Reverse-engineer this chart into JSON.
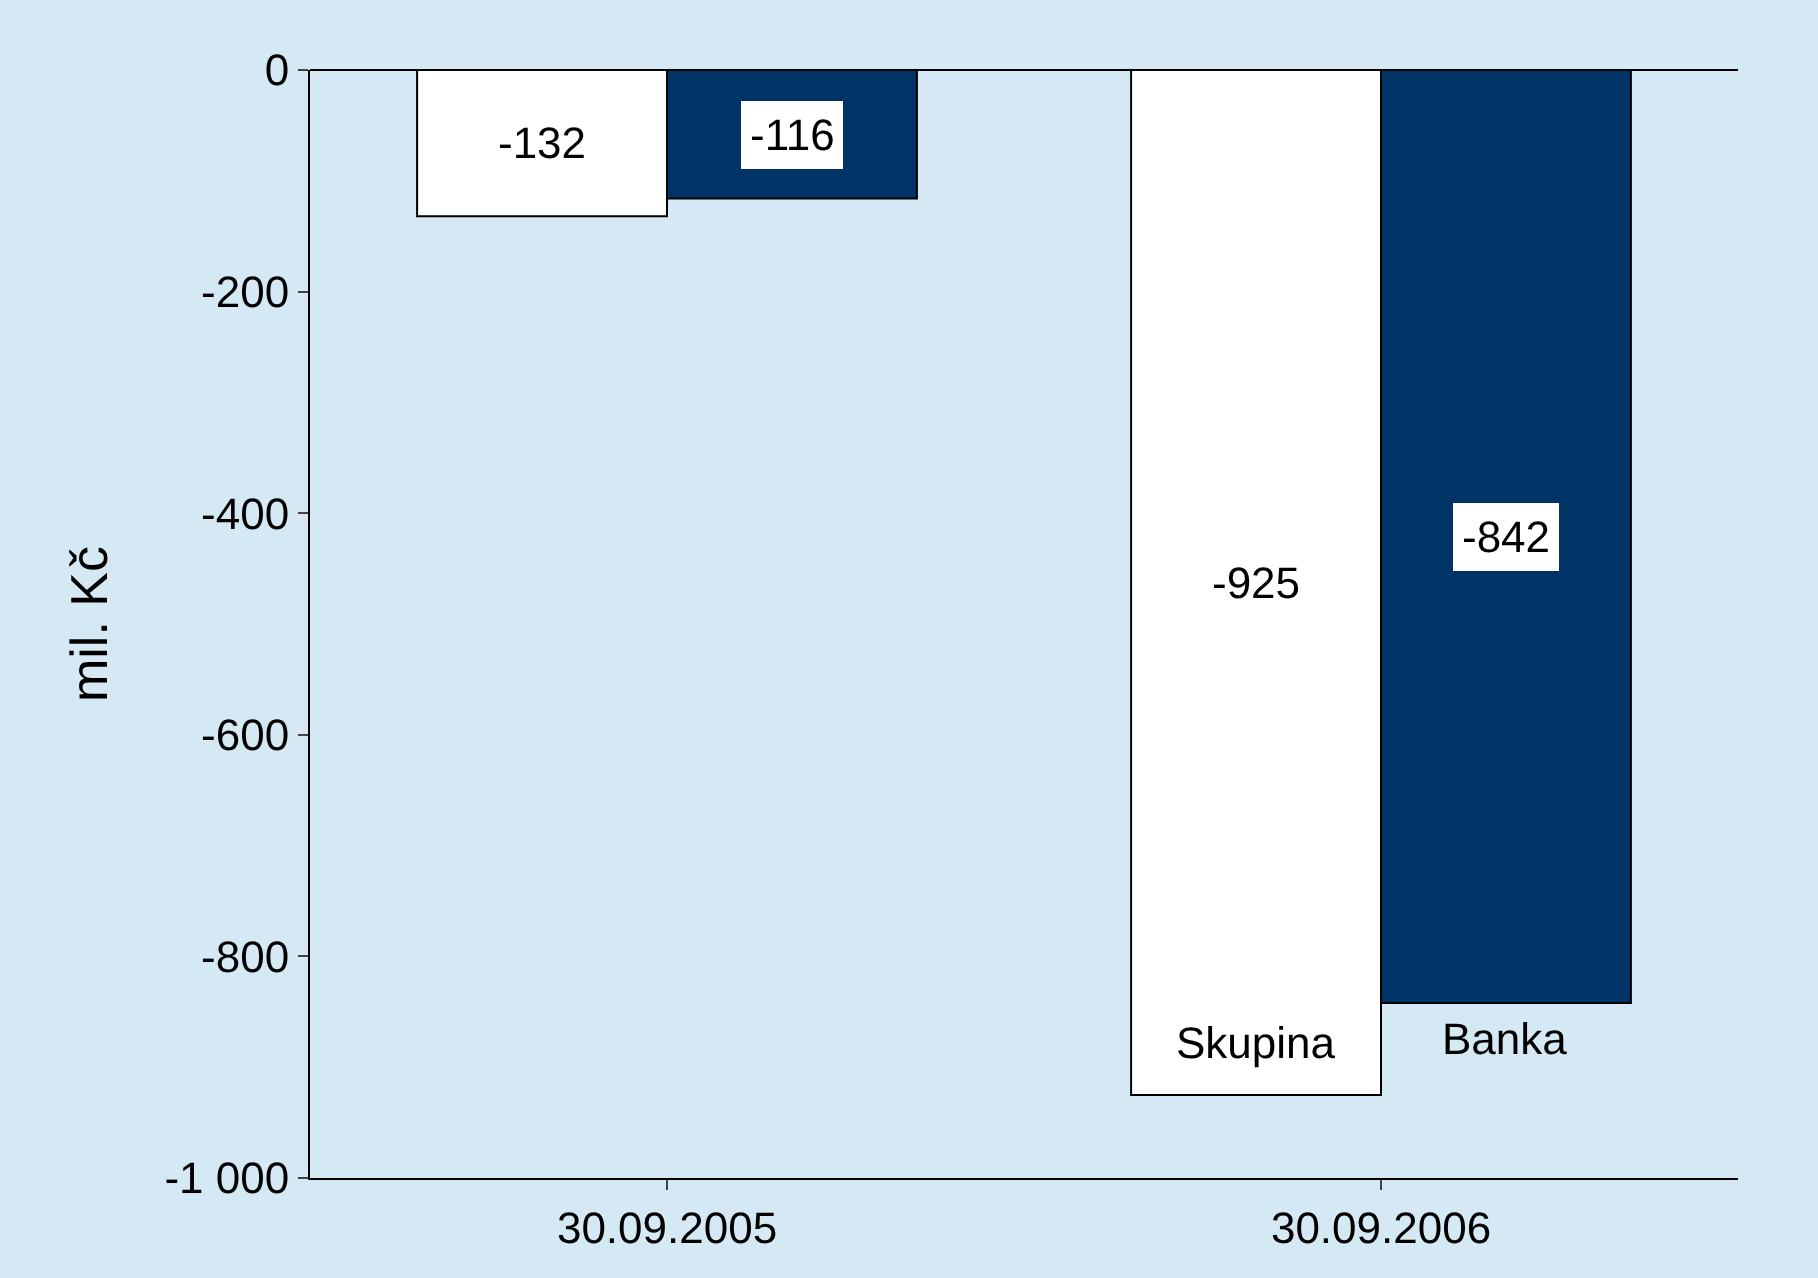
{
  "chart_data": {
    "type": "bar",
    "ylabel": "mil. Kč",
    "categories": [
      "30.09.2005",
      "30.09.2006"
    ],
    "series": [
      {
        "name": "Skupina",
        "color": "#ffffff",
        "values": [
          -132,
          -925
        ]
      },
      {
        "name": "Banka",
        "color": "#003366",
        "values": [
          -116,
          -842
        ]
      }
    ],
    "ylim": [
      -1000,
      0
    ],
    "yticks": [
      0,
      -200,
      -400,
      -600,
      -800,
      {
        "value": -1000,
        "label": "-1 000"
      }
    ],
    "grid": false,
    "legend": false,
    "data_labels": true
  }
}
